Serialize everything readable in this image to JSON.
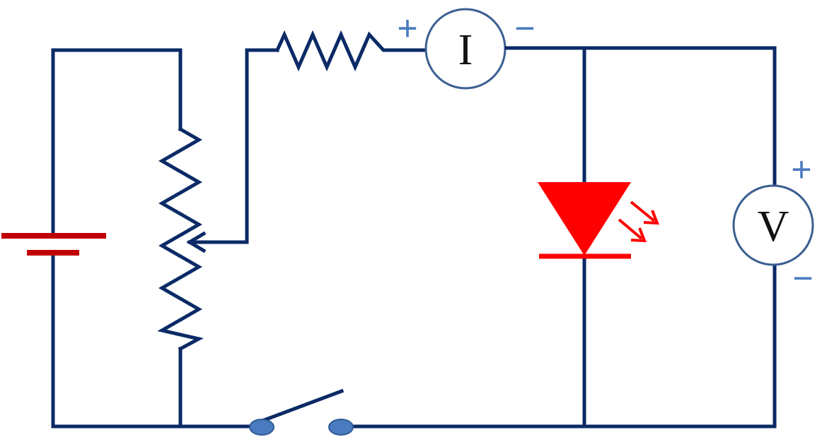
{
  "diagram": {
    "type": "circuit-schematic",
    "colors": {
      "wire": "#0b2a66",
      "battery": "#c00000",
      "led": "#ff0000",
      "meter_border": "#3a5f91",
      "polarity": "#4a7bc0",
      "switch_contact": "#4a7bc0"
    },
    "ammeter": {
      "label": "I",
      "plus_sign": "+",
      "minus_sign": "−"
    },
    "voltmeter": {
      "label": "V",
      "plus_sign": "+",
      "minus_sign": "−"
    },
    "components": [
      "battery",
      "potentiometer",
      "resistor",
      "ammeter",
      "led",
      "voltmeter",
      "switch"
    ]
  }
}
